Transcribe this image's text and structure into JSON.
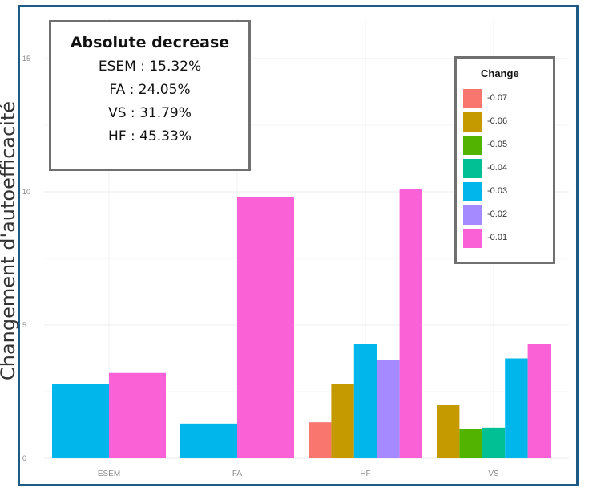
{
  "chart_data": {
    "type": "bar",
    "ylabel": "Changement d'autoefficacité",
    "ylim": [
      0,
      16
    ],
    "yticks": [
      0,
      5,
      10,
      15
    ],
    "grid": true,
    "categories": [
      "ESEM",
      "FA",
      "HF",
      "VS"
    ],
    "legend": {
      "title": "Change",
      "placement": "top-right",
      "entries": [
        {
          "label": "-0.07",
          "color": "#f8766d"
        },
        {
          "label": "-0.06",
          "color": "#c49a00"
        },
        {
          "label": "-0.05",
          "color": "#53b400"
        },
        {
          "label": "-0.04",
          "color": "#00c094"
        },
        {
          "label": "-0.03",
          "color": "#00b6eb"
        },
        {
          "label": "-0.02",
          "color": "#a58aff"
        },
        {
          "label": "-0.01",
          "color": "#fb61d7"
        }
      ]
    },
    "bars": [
      {
        "category": "ESEM",
        "series": "-0.03",
        "value": 2.8
      },
      {
        "category": "ESEM",
        "series": "-0.01",
        "value": 3.2
      },
      {
        "category": "FA",
        "series": "-0.03",
        "value": 1.3
      },
      {
        "category": "FA",
        "series": "-0.01",
        "value": 9.8
      },
      {
        "category": "HF",
        "series": "-0.07",
        "value": 1.35
      },
      {
        "category": "HF",
        "series": "-0.06",
        "value": 2.8
      },
      {
        "category": "HF",
        "series": "-0.03",
        "value": 4.3
      },
      {
        "category": "HF",
        "series": "-0.02",
        "value": 3.7
      },
      {
        "category": "HF",
        "series": "-0.01",
        "value": 10.1
      },
      {
        "category": "VS",
        "series": "-0.06",
        "value": 2.0
      },
      {
        "category": "VS",
        "series": "-0.05",
        "value": 1.1
      },
      {
        "category": "VS",
        "series": "-0.04",
        "value": 1.15
      },
      {
        "category": "VS",
        "series": "-0.03",
        "value": 3.75
      },
      {
        "category": "VS",
        "series": "-0.01",
        "value": 4.3
      }
    ]
  },
  "annotation": {
    "title": "Absolute decrease",
    "lines": [
      "ESEM : 15.32%",
      "FA : 24.05%",
      "VS : 31.79%",
      "HF : 45.33%"
    ]
  }
}
